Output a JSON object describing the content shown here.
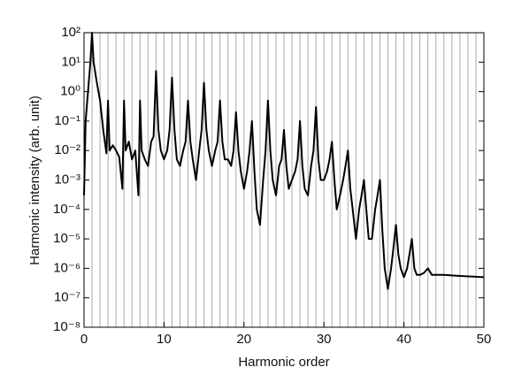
{
  "chart_data": {
    "type": "line",
    "log_y": true,
    "x_label": "Harmonic order",
    "y_label": "Harmonic intensity (arb. unit)",
    "xlim": [
      0,
      50
    ],
    "xticks": [
      0,
      10,
      20,
      30,
      40,
      50
    ],
    "xgrid": [
      0,
      1,
      2,
      3,
      4,
      5,
      6,
      7,
      8,
      9,
      10,
      11,
      12,
      13,
      14,
      15,
      16,
      17,
      18,
      19,
      20,
      21,
      22,
      23,
      24,
      25,
      26,
      27,
      28,
      29,
      30,
      31,
      32,
      33,
      34,
      35,
      36,
      37,
      38,
      39,
      40,
      41,
      42,
      43,
      44,
      45,
      46,
      47,
      48,
      49,
      50
    ],
    "grid_color": "#aaaaaa",
    "ylim": [
      1e-08,
      100
    ],
    "yticks": [
      {
        "value": 1e-08,
        "label": "10⁻⁸"
      },
      {
        "value": 1e-07,
        "label": "10⁻⁷"
      },
      {
        "value": 1e-06,
        "label": "10⁻⁶"
      },
      {
        "value": 1e-05,
        "label": "10⁻⁵"
      },
      {
        "value": 0.0001,
        "label": "10⁻⁴"
      },
      {
        "value": 0.001,
        "label": "10⁻³"
      },
      {
        "value": 0.01,
        "label": "10⁻²"
      },
      {
        "value": 0.1,
        "label": "10⁻¹"
      },
      {
        "value": 1,
        "label": "10⁰"
      },
      {
        "value": 10,
        "label": "10¹"
      },
      {
        "value": 100,
        "label": "10²"
      }
    ],
    "series": [
      {
        "color": "#000000",
        "x": [
          0,
          0.2,
          0.5,
          0.8,
          1,
          1.2,
          1.6,
          2,
          2.4,
          2.8,
          3,
          3.2,
          3.6,
          4,
          4.4,
          4.8,
          5,
          5.2,
          5.6,
          6,
          6.4,
          6.8,
          7,
          7.2,
          7.6,
          8,
          8.4,
          8.7,
          9,
          9.3,
          9.6,
          10,
          10.4,
          10.7,
          11,
          11.3,
          11.6,
          12,
          12.4,
          12.7,
          13,
          13.3,
          13.6,
          14,
          14.4,
          14.7,
          15,
          15.3,
          15.6,
          16,
          16.4,
          16.7,
          17,
          17.3,
          17.6,
          18,
          18.4,
          18.7,
          19,
          19.3,
          19.6,
          20,
          20.4,
          20.7,
          21,
          21.3,
          21.6,
          22,
          22.4,
          22.7,
          23,
          23.3,
          23.6,
          24,
          24.4,
          24.7,
          25,
          25.3,
          25.6,
          26,
          26.4,
          26.7,
          27,
          27.3,
          27.6,
          28,
          28.4,
          28.7,
          29,
          29.3,
          29.6,
          30,
          30.4,
          30.7,
          31,
          31.3,
          31.6,
          32,
          32.4,
          32.7,
          33,
          33.3,
          33.6,
          34,
          34.4,
          34.7,
          35,
          35.3,
          35.6,
          36,
          36.4,
          36.7,
          37,
          37.3,
          37.6,
          38,
          38.4,
          38.7,
          39,
          39.3,
          39.6,
          40,
          40.4,
          40.7,
          41,
          41.3,
          41.6,
          42,
          42.5,
          43,
          43.5,
          45,
          47,
          50
        ],
        "values": [
          0.0003,
          0.1,
          1,
          10,
          100,
          10,
          2,
          0.5,
          0.05,
          0.008,
          0.5,
          0.01,
          0.015,
          0.01,
          0.006,
          0.0005,
          0.5,
          0.01,
          0.02,
          0.005,
          0.01,
          0.0003,
          0.5,
          0.01,
          0.005,
          0.003,
          0.02,
          0.03,
          5,
          0.05,
          0.01,
          0.005,
          0.01,
          0.05,
          3,
          0.05,
          0.005,
          0.003,
          0.01,
          0.02,
          0.5,
          0.02,
          0.005,
          0.001,
          0.01,
          0.05,
          2,
          0.05,
          0.01,
          0.003,
          0.01,
          0.02,
          0.5,
          0.02,
          0.005,
          0.005,
          0.003,
          0.01,
          0.2,
          0.01,
          0.002,
          0.0005,
          0.002,
          0.01,
          0.1,
          0.002,
          0.0001,
          3e-05,
          0.001,
          0.01,
          0.5,
          0.01,
          0.001,
          0.0003,
          0.003,
          0.005,
          0.05,
          0.003,
          0.0005,
          0.001,
          0.002,
          0.005,
          0.1,
          0.003,
          0.0005,
          0.0003,
          0.003,
          0.01,
          0.3,
          0.005,
          0.001,
          0.001,
          0.002,
          0.005,
          0.02,
          0.001,
          0.0001,
          0.0003,
          0.001,
          0.003,
          0.01,
          0.0005,
          0.0001,
          1e-05,
          0.0001,
          0.0003,
          0.001,
          0.0001,
          1e-05,
          1e-05,
          0.0001,
          0.0003,
          0.001,
          2e-05,
          1e-06,
          2e-07,
          1e-06,
          5e-06,
          3e-05,
          3e-06,
          1e-06,
          5e-07,
          1e-06,
          3e-06,
          1e-05,
          1e-06,
          6e-07,
          6e-07,
          7e-07,
          1e-06,
          6e-07,
          6e-07,
          5.5e-07,
          5e-07
        ]
      }
    ]
  }
}
